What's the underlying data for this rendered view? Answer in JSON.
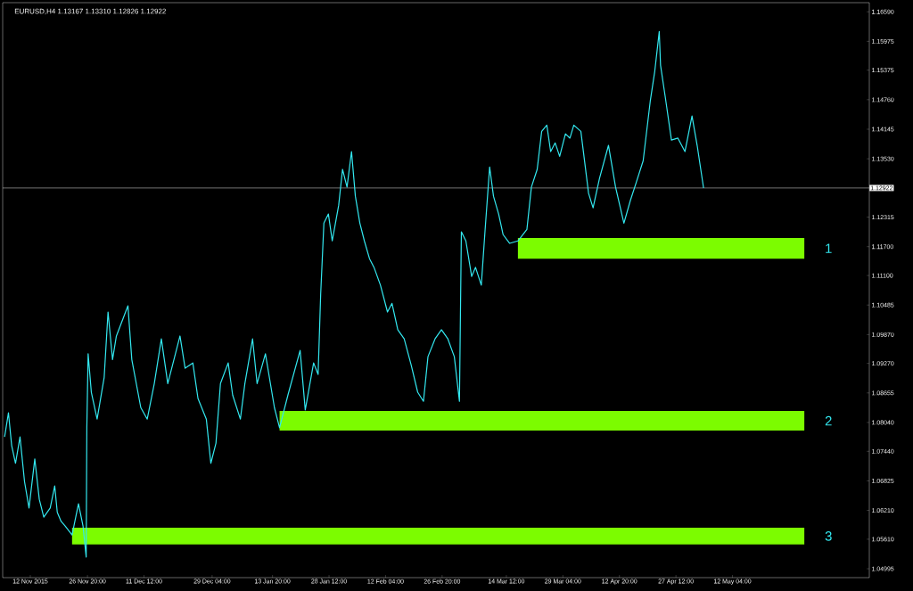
{
  "chart_data": {
    "type": "line",
    "title": "EURUSD,H4  1.13167 1.13310 1.12826 1.12922",
    "xlim": [
      "2015-11-04T20:00",
      "2016-06-16T16:00"
    ],
    "ylim": [
      1.0481,
      1.1678
    ],
    "xticks": [
      {
        "value": "2015-11-12T00:00",
        "label": "12 Nov 2015"
      },
      {
        "value": "2015-11-26T20:00",
        "label": "26 Nov 20:00"
      },
      {
        "value": "2015-12-11T12:00",
        "label": "11 Dec 12:00"
      },
      {
        "value": "2015-12-29T04:00",
        "label": "29 Dec 04:00"
      },
      {
        "value": "2016-01-13T20:00",
        "label": "13 Jan 20:00"
      },
      {
        "value": "2016-01-28T12:00",
        "label": "28 Jan 12:00"
      },
      {
        "value": "2016-02-12T04:00",
        "label": "12 Feb 04:00"
      },
      {
        "value": "2016-02-26T20:00",
        "label": "26 Feb 20:00"
      },
      {
        "value": "2016-03-14T12:00",
        "label": "14 Mar 12:00"
      },
      {
        "value": "2016-03-29T04:00",
        "label": "29 Mar 04:00"
      },
      {
        "value": "2016-04-12T20:00",
        "label": "12 Apr 20:00"
      },
      {
        "value": "2016-04-27T12:00",
        "label": "27 Apr 12:00"
      },
      {
        "value": "2016-05-12T04:00",
        "label": "12 May 04:00"
      }
    ],
    "yticks": [
      {
        "value": 1.1659,
        "label": "1.16590"
      },
      {
        "value": 1.15975,
        "label": "1.15975"
      },
      {
        "value": 1.15375,
        "label": "1.15375"
      },
      {
        "value": 1.1476,
        "label": "1.14760"
      },
      {
        "value": 1.14145,
        "label": "1.14145"
      },
      {
        "value": 1.1353,
        "label": "1.13530"
      },
      {
        "value": 1.12315,
        "label": "1.12315"
      },
      {
        "value": 1.117,
        "label": "1.11700"
      },
      {
        "value": 1.111,
        "label": "1.11100"
      },
      {
        "value": 1.10485,
        "label": "1.10485"
      },
      {
        "value": 1.0987,
        "label": "1.09870"
      },
      {
        "value": 1.0927,
        "label": "1.09270"
      },
      {
        "value": 1.08655,
        "label": "1.08655"
      },
      {
        "value": 1.0804,
        "label": "1.08040"
      },
      {
        "value": 1.0744,
        "label": "1.07440"
      },
      {
        "value": 1.06825,
        "label": "1.06825"
      },
      {
        "value": 1.0621,
        "label": "1.06210"
      },
      {
        "value": 1.0561,
        "label": "1.05610"
      },
      {
        "value": 1.04995,
        "label": "1.04995"
      }
    ],
    "ref_lines": [
      {
        "axis": "y",
        "value": 1.12922,
        "label": "1.12922",
        "color": "#c0c0c0"
      }
    ],
    "bands": [
      {
        "axis": "y",
        "from": 1.1145,
        "to": 1.1188,
        "label": "1",
        "color": "#7cfc00"
      },
      {
        "axis": "y",
        "from": 1.0787,
        "to": 1.0828,
        "label": "2",
        "color": "#7cfc00"
      },
      {
        "axis": "y",
        "from": 1.055,
        "to": 1.0585,
        "label": "3",
        "color": "#7cfc00"
      }
    ],
    "series": [
      {
        "color": "#33e8f0",
        "x": [
          "2015-11-05T08:00",
          "2015-11-06T08:00",
          "2015-11-07T04:00",
          "2015-11-08T04:00",
          "2015-11-09T08:00",
          "2015-11-10T12:00",
          "2015-11-11T16:00",
          "2015-11-13T04:00",
          "2015-11-14T08:00",
          "2015-11-15T12:00",
          "2015-11-17T04:00",
          "2015-11-18T08:00",
          "2015-11-19T00:00",
          "2015-11-20T00:00",
          "2015-11-21T00:00",
          "2015-11-22T20:00",
          "2015-11-24T12:00",
          "2015-11-25T16:00",
          "2015-11-26T12:00",
          "2015-11-26T16:00",
          "2015-11-27T00:00",
          "2015-11-27T20:00",
          "2015-11-29T08:00",
          "2015-12-01T04:00",
          "2015-12-02T04:00",
          "2015-12-03T08:00",
          "2015-12-04T08:00",
          "2015-12-07T08:00",
          "2015-12-08T08:00",
          "2015-12-10T16:00",
          "2015-12-12T08:00",
          "2015-12-14T04:00",
          "2015-12-16T00:00",
          "2015-12-17T16:00",
          "2015-12-20T20:00",
          "2015-12-22T04:00",
          "2015-12-24T04:00",
          "2015-12-25T12:00",
          "2015-12-27T16:00",
          "2015-12-28T20:00",
          "2015-12-30T04:00",
          "2015-12-31T08:00",
          "2016-01-02T08:00",
          "2016-01-03T12:00",
          "2016-01-05T12:00",
          "2016-01-06T16:00",
          "2016-01-08T16:00",
          "2016-01-09T20:00",
          "2016-01-12T00:00",
          "2016-01-14T08:00",
          "2016-01-15T16:00",
          "2016-01-17T20:00",
          "2016-01-21T00:00",
          "2016-01-22T08:00",
          "2016-01-24T12:00",
          "2016-01-25T16:00",
          "2016-01-26T08:00",
          "2016-01-27T04:00",
          "2016-01-28T08:00",
          "2016-01-29T08:00",
          "2016-01-31T00:00",
          "2016-02-01T00:00",
          "2016-02-02T04:00",
          "2016-02-03T08:00",
          "2016-02-04T08:00",
          "2016-02-05T12:00",
          "2016-02-06T16:00",
          "2016-02-08T00:00",
          "2016-02-09T04:00",
          "2016-02-10T20:00",
          "2016-02-12T16:00",
          "2016-02-13T20:00",
          "2016-02-15T08:00",
          "2016-02-17T00:00",
          "2016-02-18T20:00",
          "2016-02-20T12:00",
          "2016-02-22T00:00",
          "2016-02-23T04:00",
          "2016-02-25T00:00",
          "2016-02-26T16:00",
          "2016-02-28T08:00",
          "2016-03-01T00:00",
          "2016-03-02T08:00",
          "2016-03-02T20:00",
          "2016-03-04T00:00",
          "2016-03-05T12:00",
          "2016-03-06T12:00",
          "2016-03-08T00:00",
          "2016-03-09T00:00",
          "2016-03-10T04:00",
          "2016-03-11T04:00",
          "2016-03-12T12:00",
          "2016-03-13T16:00",
          "2016-03-15T08:00",
          "2016-03-17T12:00",
          "2016-03-19T20:00",
          "2016-03-21T00:00",
          "2016-03-22T12:00",
          "2016-03-23T16:00",
          "2016-03-25T00:00",
          "2016-03-26T00:00",
          "2016-03-27T04:00",
          "2016-03-28T08:00",
          "2016-03-29T20:00",
          "2016-03-31T00:00",
          "2016-04-01T00:00",
          "2016-04-02T20:00",
          "2016-04-04T20:00",
          "2016-04-06T00:00",
          "2016-04-07T16:00",
          "2016-04-10T00:00",
          "2016-04-11T20:00",
          "2016-04-14T00:00",
          "2016-04-15T16:00",
          "2016-04-17T04:00",
          "2016-04-19T00:00",
          "2016-04-20T20:00",
          "2016-04-22T00:00",
          "2016-04-23T04:00",
          "2016-04-23T12:00",
          "2016-04-24T16:00",
          "2016-04-26T08:00",
          "2016-04-28T00:00",
          "2016-04-29T20:00",
          "2016-05-01T16:00",
          "2016-05-03T00:00",
          "2016-05-04T16:00"
        ],
        "values": [
          1.0774,
          1.0824,
          1.0756,
          1.0719,
          1.0774,
          1.0681,
          1.0626,
          1.0728,
          1.0644,
          1.0607,
          1.0626,
          1.0672,
          1.0617,
          1.0598,
          1.0589,
          1.057,
          1.0635,
          1.0589,
          1.0524,
          1.0793,
          1.0947,
          1.0867,
          1.0811,
          1.0898,
          1.1034,
          1.0935,
          1.0984,
          1.1047,
          1.0935,
          1.0835,
          1.0811,
          1.0885,
          1.0978,
          1.0885,
          1.0984,
          1.0917,
          1.0928,
          1.0854,
          1.0811,
          1.0719,
          1.0761,
          1.0885,
          1.0928,
          1.0861,
          1.0811,
          1.0885,
          1.0978,
          1.0885,
          1.0947,
          1.0835,
          1.0793,
          1.0861,
          1.0954,
          1.083,
          1.0928,
          1.0904,
          1.1071,
          1.1219,
          1.1238,
          1.1182,
          1.1256,
          1.1331,
          1.1294,
          1.1368,
          1.1275,
          1.1219,
          1.1182,
          1.1145,
          1.1127,
          1.109,
          1.1034,
          1.1052,
          1.0997,
          1.0978,
          1.0923,
          1.0867,
          1.0848,
          1.0941,
          1.0978,
          1.0997,
          1.0978,
          1.0941,
          1.0848,
          1.1201,
          1.1182,
          1.1108,
          1.1127,
          1.109,
          1.1206,
          1.1336,
          1.1275,
          1.1238,
          1.1195,
          1.1177,
          1.1182,
          1.1206,
          1.1294,
          1.1331,
          1.141,
          1.1423,
          1.1368,
          1.1386,
          1.1358,
          1.1405,
          1.1396,
          1.1423,
          1.141,
          1.1281,
          1.1251,
          1.1312,
          1.1381,
          1.1294,
          1.1219,
          1.1266,
          1.1303,
          1.1349,
          1.1473,
          1.1535,
          1.1618,
          1.1548,
          1.1485,
          1.1392,
          1.1396,
          1.1368,
          1.1442,
          1.1381,
          1.1292
        ]
      }
    ]
  }
}
